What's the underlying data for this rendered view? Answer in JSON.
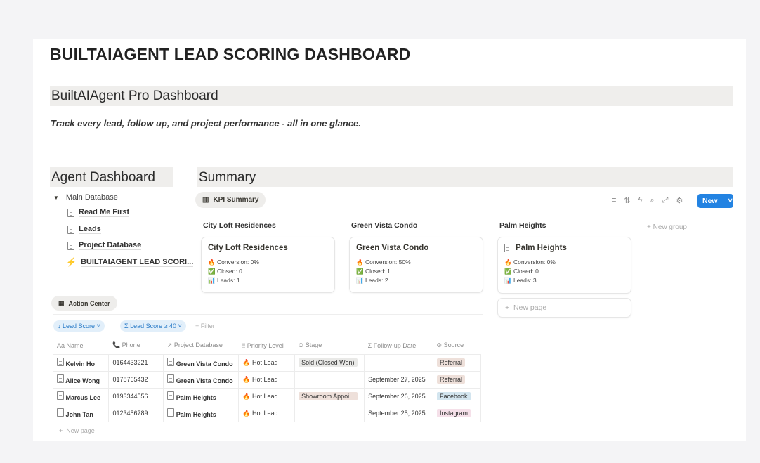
{
  "title": "BUILTAIAGENT LEAD SCORING DASHBOARD",
  "heading": "BuiltAIAgent Pro Dashboard",
  "tagline": "Track every lead, follow up, and project performance - all in one glance.",
  "agent": {
    "heading": "Agent Dashboard",
    "root": "Main Database",
    "items": [
      {
        "label": "Read Me First",
        "icon": "page-icon"
      },
      {
        "label": "Leads",
        "icon": "page-icon"
      },
      {
        "label": "Project Database",
        "icon": "page-icon"
      },
      {
        "label": "BUILTAIAGENT LEAD SCORI...",
        "icon": "lightning-link-icon"
      }
    ]
  },
  "summary": {
    "heading": "Summary",
    "view": "KPI Summary",
    "new_label": "New",
    "new_group": "+ New group",
    "new_page": "New page",
    "groups": [
      {
        "group": "City Loft Residences",
        "card": "City Loft Residences",
        "conversion": "Conversion: 0%",
        "closed": "Closed: 0",
        "leads": "Leads: 1"
      },
      {
        "group": "Green Vista Condo",
        "card": "Green Vista Condo",
        "conversion": "Conversion: 50%",
        "closed": "Closed: 1",
        "leads": "Leads: 2"
      },
      {
        "group": "Palm Heights",
        "card": "Palm Heights",
        "conversion": "Conversion: 0%",
        "closed": "Closed: 0",
        "leads": "Leads: 3"
      }
    ]
  },
  "action": {
    "view": "Action Center",
    "sort": "↓ Lead Score ˅",
    "filter": "Σ Lead Score ≥ 40 ˅",
    "add_filter": "+ Filter",
    "new_page": "New page",
    "columns": [
      "Name",
      "Phone",
      "Project Database",
      "Priority Level",
      "Stage",
      "Follow-up Date",
      "Source"
    ],
    "rows": [
      {
        "name": "Kelvin Ho",
        "phone": "0164433221",
        "project": "Green Vista Condo",
        "priority": "Hot Lead",
        "stage": "Sold (Closed Won)",
        "followup": "",
        "source": "Referral"
      },
      {
        "name": "Alice Wong",
        "phone": "0178765432",
        "project": "Green Vista Condo",
        "priority": "Hot Lead",
        "stage": "",
        "followup": "September 27, 2025",
        "source": "Referral"
      },
      {
        "name": "Marcus Lee",
        "phone": "0193344556",
        "project": "Palm Heights",
        "priority": "Hot Lead",
        "stage": "Showroom Appoi...",
        "followup": "September 26, 2025",
        "source": "Facebook"
      },
      {
        "name": "John Tan",
        "phone": "0123456789",
        "project": "Palm Heights",
        "priority": "Hot Lead",
        "stage": "",
        "followup": "September 25, 2025",
        "source": "Instagram"
      }
    ]
  },
  "colors": {
    "accent": "#2383e2",
    "referral": "#eee0da",
    "facebook": "#d3e5ef",
    "instagram": "#f5e0e9",
    "stage_sold": "#e9e9e7",
    "stage_showroom": "#eee0da"
  }
}
